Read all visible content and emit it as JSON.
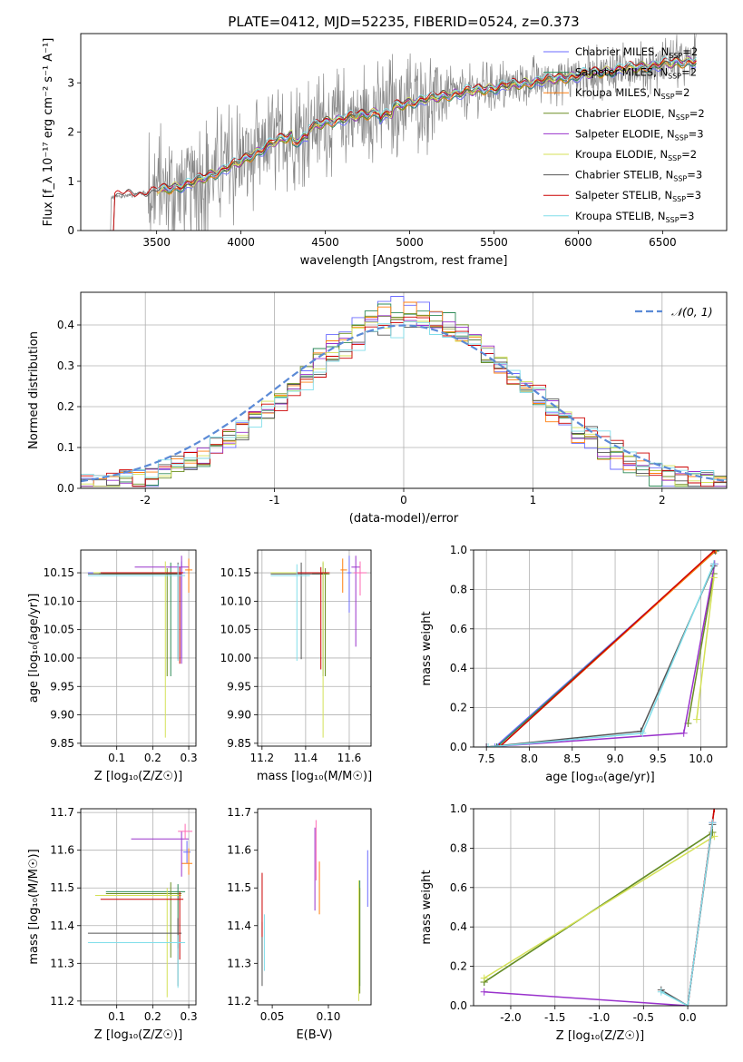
{
  "title": "PLATE=0412, MJD=52235, FIBERID=0524, z=0.373",
  "colors": {
    "chabrier_miles": "#6b6bff",
    "salpeter_miles": "#2e8b57",
    "kroupa_miles": "#ff7f0e",
    "chabrier_elodie": "#6b8e23",
    "salpeter_elodie": "#9932cc",
    "kroupa_elodie": "#d4e157",
    "chabrier_stelib": "#555555",
    "salpeter_stelib": "#cc0000",
    "kroupa_stelib": "#80deea",
    "spectrum": "#888888",
    "gaussian": "#5b8ad6",
    "mass_extra1": "#ff69b4"
  },
  "chart_data": [
    {
      "id": "spectrum",
      "type": "line",
      "xlabel": "wavelength [Angstrom, rest frame]",
      "ylabel": "Flux [f_λ 10⁻¹⁷ erg cm⁻² s⁻¹ A⁻¹]",
      "xlim": [
        3050,
        6880
      ],
      "ylim": [
        0,
        4
      ],
      "xticks": [
        3500,
        4000,
        4500,
        5000,
        5500,
        6000,
        6500
      ],
      "yticks": [
        0,
        1,
        2,
        3
      ],
      "grid": false,
      "legend_position": "top-right",
      "legend": [
        {
          "base": "Chabrier MILES, N",
          "sub": "SSP",
          "tail": "=2",
          "color": "chabrier_miles"
        },
        {
          "base": "Salpeter MILES, N",
          "sub": "SSP",
          "tail": "=2",
          "color": "salpeter_miles"
        },
        {
          "base": "Kroupa MILES, N",
          "sub": "SSP",
          "tail": "=2",
          "color": "kroupa_miles"
        },
        {
          "base": "Chabrier ELODIE, N",
          "sub": "SSP",
          "tail": "=2",
          "color": "chabrier_elodie"
        },
        {
          "base": "Salpeter ELODIE, N",
          "sub": "SSP",
          "tail": "=3",
          "color": "salpeter_elodie"
        },
        {
          "base": "Kroupa ELODIE, N",
          "sub": "SSP",
          "tail": "=2",
          "color": "kroupa_elodie"
        },
        {
          "base": "Chabrier STELIB, N",
          "sub": "SSP",
          "tail": "=3",
          "color": "chabrier_stelib"
        },
        {
          "base": "Salpeter STELIB, N",
          "sub": "SSP",
          "tail": "=3",
          "color": "salpeter_stelib"
        },
        {
          "base": "Kroupa STELIB, N",
          "sub": "SSP",
          "tail": "=3",
          "color": "kroupa_stelib"
        }
      ],
      "data_range": [
        3200,
        6700
      ],
      "model_trend": [
        [
          3200,
          0.65
        ],
        [
          3500,
          0.8
        ],
        [
          3700,
          0.95
        ],
        [
          4000,
          1.4
        ],
        [
          4200,
          1.8
        ],
        [
          4500,
          2.2
        ],
        [
          4800,
          2.4
        ],
        [
          5000,
          2.6
        ],
        [
          5300,
          2.8
        ],
        [
          5700,
          3.0
        ],
        [
          6000,
          3.15
        ],
        [
          6300,
          3.3
        ],
        [
          6700,
          3.45
        ]
      ]
    },
    {
      "id": "residuals",
      "type": "line",
      "xlabel": "(data-model)/error",
      "ylabel": "Normed distribution",
      "xlim": [
        -2.5,
        2.5
      ],
      "ylim": [
        0,
        0.48
      ],
      "xticks": [
        -2,
        -1,
        0,
        1,
        2
      ],
      "yticks": [
        0.0,
        0.1,
        0.2,
        0.3,
        0.4
      ],
      "grid": true,
      "legend_position": "top-right",
      "legend_label": "𝒩(0, 1)",
      "series": [
        {
          "name": "Normal(0,1)",
          "style": "dashed",
          "color": "gaussian",
          "sigma": 1
        }
      ],
      "histograms": {
        "bin_width": 0.1,
        "sigma": 0.88,
        "peak_offset": 0.05,
        "series_colors": [
          "chabrier_miles",
          "salpeter_miles",
          "kroupa_miles",
          "chabrier_elodie",
          "salpeter_elodie",
          "kroupa_elodie",
          "chabrier_stelib",
          "salpeter_stelib",
          "kroupa_stelib"
        ]
      }
    },
    {
      "id": "age_vs_Z",
      "type": "scatter",
      "xlabel": "Z [log₁₀(Z/Z☉)]",
      "ylabel": "age  [log₁₀(age/yr)]",
      "xlim": [
        0.0,
        0.32
      ],
      "ylim": [
        9.845,
        10.19
      ],
      "xticks": [
        0.1,
        0.2,
        0.3
      ],
      "yticks": [
        9.85,
        9.9,
        9.95,
        10.0,
        10.05,
        10.1,
        10.15
      ],
      "grid": true,
      "points": [
        {
          "x": 0.28,
          "y": 10.15,
          "xerr": [
            0.26,
            0.01
          ],
          "yerr": [
            0.15,
            0.02
          ],
          "color": "chabrier_miles"
        },
        {
          "x": 0.25,
          "y": 10.148,
          "xerr": [
            0.2,
            0.02
          ],
          "yerr": [
            0.18,
            0.02
          ],
          "color": "salpeter_miles"
        },
        {
          "x": 0.3,
          "y": 10.155,
          "xerr": [
            0.01,
            0.01
          ],
          "yerr": [
            0.04,
            0.02
          ],
          "color": "kroupa_miles"
        },
        {
          "x": 0.24,
          "y": 10.148,
          "xerr": [
            0.18,
            0.03
          ],
          "yerr": [
            0.18,
            0.01
          ],
          "color": "chabrier_elodie"
        },
        {
          "x": 0.28,
          "y": 10.16,
          "xerr": [
            0.13,
            0.02
          ],
          "yerr": [
            0.17,
            0.02
          ],
          "color": "salpeter_elodie"
        },
        {
          "x": 0.235,
          "y": 10.15,
          "xerr": [
            0.2,
            0.04
          ],
          "yerr": [
            0.29,
            0.02
          ],
          "color": "kroupa_elodie"
        },
        {
          "x": 0.27,
          "y": 10.148,
          "xerr": [
            0.25,
            0.01
          ],
          "yerr": [
            0.15,
            0.02
          ],
          "color": "chabrier_stelib"
        },
        {
          "x": 0.275,
          "y": 10.15,
          "xerr": [
            0.22,
            0.01
          ],
          "yerr": [
            0.16,
            0.01
          ],
          "color": "salpeter_stelib"
        },
        {
          "x": 0.27,
          "y": 10.145,
          "xerr": [
            0.25,
            0.02
          ],
          "yerr": [
            0.15,
            0.02
          ],
          "color": "kroupa_stelib"
        }
      ]
    },
    {
      "id": "age_vs_mass",
      "type": "scatter",
      "xlabel": "mass [log₁₀(M/M☉)]",
      "ylabel": "",
      "xlim": [
        11.18,
        11.7
      ],
      "ylim": [
        9.845,
        10.19
      ],
      "xticks": [
        11.2,
        11.4,
        11.6
      ],
      "yticks": [
        9.85,
        9.9,
        9.95,
        10.0,
        10.05,
        10.1,
        10.15
      ],
      "grid": true,
      "points": [
        {
          "x": 11.6,
          "y": 10.15,
          "xerr": [
            0.01,
            0.01
          ],
          "yerr": [
            0.07,
            0.03
          ],
          "color": "chabrier_miles"
        },
        {
          "x": 11.48,
          "y": 10.148,
          "xerr": [
            0.05,
            0.02
          ],
          "yerr": [
            0.18,
            0.02
          ],
          "color": "salpeter_miles"
        },
        {
          "x": 11.57,
          "y": 10.155,
          "xerr": [
            0.01,
            0.02
          ],
          "yerr": [
            0.04,
            0.02
          ],
          "color": "kroupa_miles"
        },
        {
          "x": 11.49,
          "y": 10.148,
          "xerr": [
            0.02,
            0.02
          ],
          "yerr": [
            0.18,
            0.01
          ],
          "color": "chabrier_elodie"
        },
        {
          "x": 11.63,
          "y": 10.16,
          "xerr": [
            0.02,
            0.02
          ],
          "yerr": [
            0.14,
            0.02
          ],
          "color": "salpeter_elodie"
        },
        {
          "x": 11.48,
          "y": 10.15,
          "xerr": [
            0.24,
            0.02
          ],
          "yerr": [
            0.29,
            0.02
          ],
          "color": "kroupa_elodie"
        },
        {
          "x": 11.38,
          "y": 10.148,
          "xerr": [
            0.14,
            0.1
          ],
          "yerr": [
            0.15,
            0.02
          ],
          "color": "chabrier_stelib"
        },
        {
          "x": 11.47,
          "y": 10.15,
          "xerr": [
            0.11,
            0.04
          ],
          "yerr": [
            0.17,
            0.01
          ],
          "color": "salpeter_stelib"
        },
        {
          "x": 11.36,
          "y": 10.145,
          "xerr": [
            0.12,
            0.06
          ],
          "yerr": [
            0.15,
            0.02
          ],
          "color": "kroupa_stelib"
        },
        {
          "x": 11.65,
          "y": 10.15,
          "xerr": [
            0.03,
            0.03
          ],
          "yerr": [
            0.04,
            0.02
          ],
          "color": "mass_extra1"
        }
      ]
    },
    {
      "id": "weight_vs_age",
      "type": "line",
      "xlabel": "age  [log₁₀(age/yr)]",
      "ylabel": "mass weight",
      "xlim": [
        7.35,
        10.3
      ],
      "ylim": [
        0,
        1.0
      ],
      "xticks": [
        7.5,
        8.0,
        8.5,
        9.0,
        9.5,
        10.0
      ],
      "yticks": [
        0.0,
        0.2,
        0.4,
        0.6,
        0.8,
        1.0
      ],
      "grid": true,
      "series": [
        {
          "color": "chabrier_miles",
          "x": [
            7.6,
            10.18
          ],
          "y": [
            0.0,
            1.0
          ]
        },
        {
          "color": "salpeter_miles",
          "x": [
            7.62,
            10.17
          ],
          "y": [
            0.0,
            0.995
          ]
        },
        {
          "color": "kroupa_miles",
          "x": [
            7.65,
            10.18
          ],
          "y": [
            0.0,
            1.0
          ]
        },
        {
          "color": "chabrier_elodie",
          "x": [
            9.85,
            10.15
          ],
          "y": [
            0.12,
            0.88
          ]
        },
        {
          "color": "salpeter_elodie",
          "x": [
            7.5,
            9.8,
            10.16
          ],
          "y": [
            0.0,
            0.07,
            0.93
          ]
        },
        {
          "color": "kroupa_elodie",
          "x": [
            9.95,
            10.15
          ],
          "y": [
            0.14,
            0.86
          ]
        },
        {
          "color": "chabrier_stelib",
          "x": [
            7.5,
            9.3,
            10.15
          ],
          "y": [
            0.0,
            0.08,
            0.92
          ]
        },
        {
          "color": "salpeter_stelib",
          "x": [
            7.65,
            10.16
          ],
          "y": [
            0.0,
            1.0
          ]
        },
        {
          "color": "kroupa_stelib",
          "x": [
            7.52,
            9.32,
            10.15
          ],
          "y": [
            0.0,
            0.07,
            0.93
          ]
        }
      ]
    },
    {
      "id": "mass_vs_Z",
      "type": "scatter",
      "xlabel": "Z [log₁₀(Z/Z☉)]",
      "ylabel": "mass [log₁₀(M/M☉)]",
      "xlim": [
        0.0,
        0.32
      ],
      "ylim": [
        11.19,
        11.71
      ],
      "xticks": [
        0.1,
        0.2,
        0.3
      ],
      "yticks": [
        11.2,
        11.3,
        11.4,
        11.5,
        11.6,
        11.7
      ],
      "grid": true,
      "points": [
        {
          "x": 0.295,
          "y": 11.595,
          "xerr": [
            0.01,
            0.01
          ],
          "yerr": [
            0.03,
            0.03
          ],
          "color": "chabrier_miles"
        },
        {
          "x": 0.27,
          "y": 11.49,
          "xerr": [
            0.2,
            0.02
          ],
          "yerr": [
            0.15,
            0.02
          ],
          "color": "salpeter_miles"
        },
        {
          "x": 0.3,
          "y": 11.565,
          "xerr": [
            0.02,
            0.01
          ],
          "yerr": [
            0.03,
            0.04
          ],
          "color": "kroupa_miles"
        },
        {
          "x": 0.25,
          "y": 11.485,
          "xerr": [
            0.18,
            0.03
          ],
          "yerr": [
            0.17,
            0.03
          ],
          "color": "chabrier_elodie"
        },
        {
          "x": 0.28,
          "y": 11.63,
          "xerr": [
            0.14,
            0.02
          ],
          "yerr": [
            0.1,
            0.02
          ],
          "color": "salpeter_elodie"
        },
        {
          "x": 0.24,
          "y": 11.48,
          "xerr": [
            0.2,
            0.04
          ],
          "yerr": [
            0.27,
            0.02
          ],
          "color": "kroupa_elodie"
        },
        {
          "x": 0.27,
          "y": 11.38,
          "xerr": [
            0.25,
            0.01
          ],
          "yerr": [
            0.14,
            0.04
          ],
          "color": "chabrier_stelib"
        },
        {
          "x": 0.275,
          "y": 11.47,
          "xerr": [
            0.22,
            0.01
          ],
          "yerr": [
            0.16,
            0.02
          ],
          "color": "salpeter_stelib"
        },
        {
          "x": 0.27,
          "y": 11.355,
          "xerr": [
            0.25,
            0.02
          ],
          "yerr": [
            0.12,
            0.02
          ],
          "color": "kroupa_stelib"
        },
        {
          "x": 0.29,
          "y": 11.65,
          "xerr": [
            0.02,
            0.02
          ],
          "yerr": [
            0.02,
            0.02
          ],
          "color": "mass_extra1"
        }
      ]
    },
    {
      "id": "mass_vs_ebv",
      "type": "scatter",
      "xlabel": "E(B-V)",
      "ylabel": "",
      "xlim": [
        0.037,
        0.138
      ],
      "ylim": [
        11.19,
        11.71
      ],
      "xticks": [
        0.05,
        0.1
      ],
      "yticks": [
        11.2,
        11.3,
        11.4,
        11.5,
        11.6,
        11.7
      ],
      "grid": false,
      "points": [
        {
          "x": 0.135,
          "y": 11.53,
          "yerr": [
            0.08,
            0.07
          ],
          "color": "chabrier_miles"
        },
        {
          "x": 0.128,
          "y": 11.46,
          "yerr": [
            0.22,
            0.06
          ],
          "color": "salpeter_miles"
        },
        {
          "x": 0.092,
          "y": 11.5,
          "yerr": [
            0.07,
            0.07
          ],
          "color": "kroupa_miles"
        },
        {
          "x": 0.128,
          "y": 11.44,
          "yerr": [
            0.22,
            0.06
          ],
          "color": "chabrier_elodie"
        },
        {
          "x": 0.088,
          "y": 11.56,
          "yerr": [
            0.12,
            0.1
          ],
          "color": "salpeter_elodie"
        },
        {
          "x": 0.127,
          "y": 11.4,
          "yerr": [
            0.2,
            0.12
          ],
          "color": "kroupa_elodie"
        },
        {
          "x": 0.041,
          "y": 11.36,
          "yerr": [
            0.12,
            0.05
          ],
          "color": "chabrier_stelib"
        },
        {
          "x": 0.041,
          "y": 11.46,
          "yerr": [
            0.09,
            0.08
          ],
          "color": "salpeter_stelib"
        },
        {
          "x": 0.043,
          "y": 11.36,
          "yerr": [
            0.08,
            0.07
          ],
          "color": "kroupa_stelib"
        },
        {
          "x": 0.089,
          "y": 11.57,
          "yerr": [
            0.05,
            0.11
          ],
          "color": "mass_extra1"
        }
      ]
    },
    {
      "id": "weight_vs_Z",
      "type": "line",
      "xlabel": "Z [log₁₀(Z/Z☉)]",
      "ylabel": "mass weight",
      "xlim": [
        -2.42,
        0.44
      ],
      "ylim": [
        0,
        1.0
      ],
      "xticks": [
        -2.0,
        -1.5,
        -1.0,
        -0.5,
        0.0
      ],
      "yticks": [
        0.0,
        0.2,
        0.4,
        0.6,
        0.8,
        1.0
      ],
      "grid": true,
      "series": [
        {
          "color": "chabrier_miles",
          "x": [
            0.0,
            0.3
          ],
          "y": [
            0.0,
            1.0
          ]
        },
        {
          "color": "salpeter_miles",
          "x": [
            -2.3,
            0.28
          ],
          "y": [
            0.12,
            0.88
          ]
        },
        {
          "color": "kroupa_miles",
          "x": [
            0.0,
            0.3
          ],
          "y": [
            0.0,
            1.0
          ]
        },
        {
          "color": "chabrier_elodie",
          "x": [
            -2.3,
            0.28
          ],
          "y": [
            0.12,
            0.88
          ]
        },
        {
          "color": "salpeter_elodie",
          "x": [
            -2.3,
            0.0,
            0.28
          ],
          "y": [
            0.07,
            0.0,
            0.93
          ]
        },
        {
          "color": "kroupa_elodie",
          "x": [
            -2.3,
            0.3
          ],
          "y": [
            0.14,
            0.86
          ]
        },
        {
          "color": "chabrier_stelib",
          "x": [
            -0.3,
            0.0,
            0.28
          ],
          "y": [
            0.08,
            0.0,
            0.92
          ]
        },
        {
          "color": "salpeter_stelib",
          "x": [
            0.0,
            0.3
          ],
          "y": [
            0.0,
            1.0
          ]
        },
        {
          "color": "kroupa_stelib",
          "x": [
            -0.3,
            0.0,
            0.28
          ],
          "y": [
            0.07,
            0.0,
            0.93
          ]
        }
      ]
    }
  ]
}
